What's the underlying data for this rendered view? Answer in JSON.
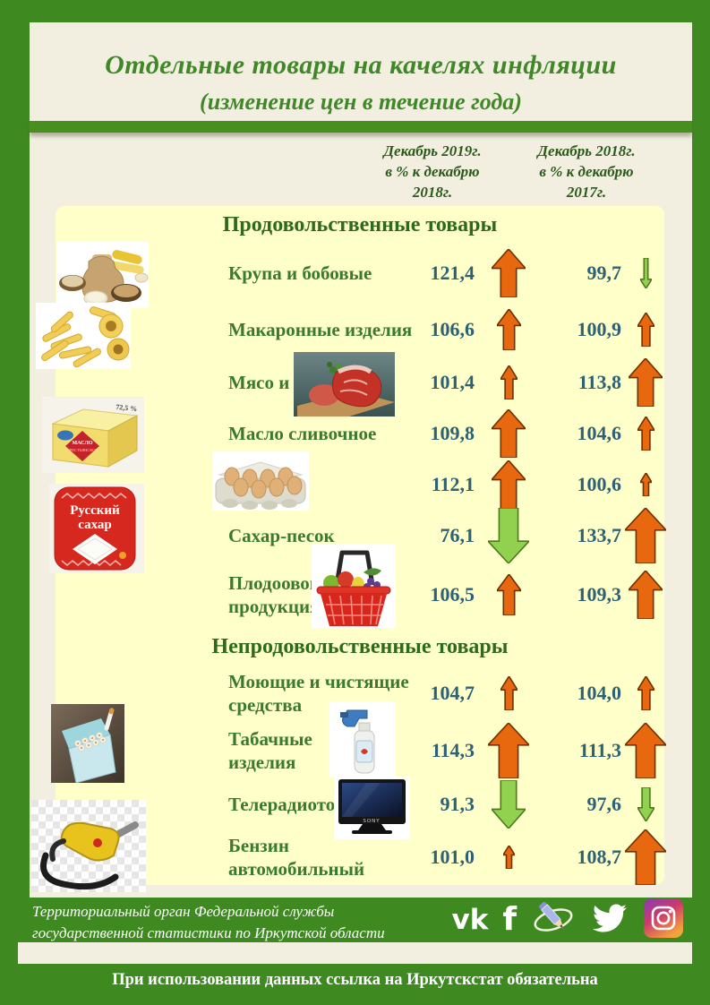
{
  "title": {
    "line1": "Отдельные  товары  на качелях инфляции",
    "line2": "(изменение цен в течение года)"
  },
  "column_headers": [
    {
      "lines": [
        "Декабрь 2019г.",
        "в % к декабрю",
        "2018г."
      ]
    },
    {
      "lines": [
        "Декабрь 2018г.",
        "в % к декабрю",
        "2017г."
      ]
    }
  ],
  "items": [
    {
      "type": "section",
      "label": "Продовольственные товары"
    },
    {
      "type": "row",
      "lines": [
        "Крупа и бобовые"
      ],
      "v1": "121,4",
      "a1": {
        "dir": "up",
        "color": "orange",
        "size": "l"
      },
      "v2": "99,7",
      "a2": {
        "dir": "down",
        "color": "green",
        "size": "thin"
      }
    },
    {
      "type": "row",
      "lines": [
        "Макаронные изделия"
      ],
      "v1": "106,6",
      "a1": {
        "dir": "up",
        "color": "orange",
        "size": "m"
      },
      "v2": "100,9",
      "a2": {
        "dir": "up",
        "color": "orange",
        "size": "s"
      }
    },
    {
      "type": "row",
      "lines": [
        "Мясо и птица"
      ],
      "v1": "101,4",
      "a1": {
        "dir": "up",
        "color": "orange",
        "size": "s"
      },
      "v2": "113,8",
      "a2": {
        "dir": "up",
        "color": "orange",
        "size": "l"
      }
    },
    {
      "type": "row",
      "lines": [
        "Масло сливочное"
      ],
      "v1": "109,8",
      "a1": {
        "dir": "up",
        "color": "orange",
        "size": "l"
      },
      "v2": "104,6",
      "a2": {
        "dir": "up",
        "color": "orange",
        "size": "s"
      }
    },
    {
      "type": "row",
      "lines": [
        "Яйца"
      ],
      "v1": "112,1",
      "a1": {
        "dir": "up",
        "color": "orange",
        "size": "l"
      },
      "v2": "100,6",
      "a2": {
        "dir": "up",
        "color": "orange",
        "size": "xs"
      }
    },
    {
      "type": "row",
      "lines": [
        "Сахар-песок"
      ],
      "v1": "76,1",
      "a1": {
        "dir": "down",
        "color": "green",
        "size": "xl"
      },
      "v2": "133,7",
      "a2": {
        "dir": "up",
        "color": "orange",
        "size": "xl"
      }
    },
    {
      "type": "row",
      "lines": [
        "Плодоовощная",
        "продукция"
      ],
      "v1": "106,5",
      "a1": {
        "dir": "up",
        "color": "orange",
        "size": "m"
      },
      "v2": "109,3",
      "a2": {
        "dir": "up",
        "color": "orange",
        "size": "l"
      }
    },
    {
      "type": "section",
      "label": "Непродовольственные товары"
    },
    {
      "type": "row",
      "lines": [
        "Моющие и чистящие",
        "средства"
      ],
      "v1": "104,7",
      "a1": {
        "dir": "up",
        "color": "orange",
        "size": "s"
      },
      "v2": "104,0",
      "a2": {
        "dir": "up",
        "color": "orange",
        "size": "s"
      }
    },
    {
      "type": "row",
      "lines": [
        "Табачные",
        "изделия"
      ],
      "v1": "114,3",
      "a1": {
        "dir": "up",
        "color": "orange",
        "size": "xl"
      },
      "v2": "111,3",
      "a2": {
        "dir": "up",
        "color": "orange",
        "size": "xl"
      }
    },
    {
      "type": "row",
      "lines": [
        "Телерадиотовары"
      ],
      "v1": "91,3",
      "a1": {
        "dir": "down",
        "color": "green",
        "size": "l"
      },
      "v2": "97,6",
      "a2": {
        "dir": "down",
        "color": "green",
        "size": "s"
      }
    },
    {
      "type": "row",
      "lines": [
        "Бензин",
        "автомобильный"
      ],
      "v1": "101,0",
      "a1": {
        "dir": "up",
        "color": "orange",
        "size": "xs"
      },
      "v2": "108,7",
      "a2": {
        "dir": "up",
        "color": "orange",
        "size": "xl"
      }
    }
  ],
  "photos": {
    "sugar_brand": "Русский",
    "sugar_word": "сахар",
    "tv_brand": "SONY",
    "butter_fat": "72,5 %",
    "butter_label": "МАСЛО",
    "butter_sub": "КРЕСТЬЯНСКОЕ"
  },
  "footer": {
    "org_lines": [
      "Территориальный орган Федеральной службы",
      "государственной статистики  по Иркутской области"
    ],
    "social": [
      "vk",
      "facebook",
      "livejournal-pencil",
      "twitter",
      "instagram"
    ],
    "vk_label": "vk",
    "facebook_label": "f",
    "notice": "При использовании данных ссылка на Иркутскстат обязательна"
  },
  "colors": {
    "frame_green": "#3e8a21",
    "divider_green": "#47901f",
    "title_green": "#3f8727",
    "header_green": "#2b5a1a",
    "section_green": "#2e6a1c",
    "label_green": "#3a7a2e",
    "value_teal": "#2d6173",
    "panel_yellow": "#ffffc9",
    "paper_cream": "#f2efe1",
    "arrow_up_orange": "#e8680f",
    "arrow_down_green": "#92d050"
  },
  "chart_data": {
    "type": "table",
    "title": "Отдельные товары на качелях инфляции (изменение цен в течение года)",
    "columns": [
      "Декабрь 2019г. в % к декабрю 2018г.",
      "Декабрь 2018г. в % к декабрю 2017г."
    ],
    "groups": [
      {
        "name": "Продовольственные товары",
        "rows": [
          [
            "Крупа и бобовые",
            121.4,
            99.7
          ],
          [
            "Макаронные изделия",
            106.6,
            100.9
          ],
          [
            "Мясо и птица",
            101.4,
            113.8
          ],
          [
            "Масло сливочное",
            109.8,
            104.6
          ],
          [
            "Яйца",
            112.1,
            100.6
          ],
          [
            "Сахар-песок",
            76.1,
            133.7
          ],
          [
            "Плодоовощная продукция",
            106.5,
            109.3
          ]
        ]
      },
      {
        "name": "Непродовольственные товары",
        "rows": [
          [
            "Моющие и чистящие средства",
            104.7,
            104.0
          ],
          [
            "Табачные изделия",
            114.3,
            111.3
          ],
          [
            "Телерадиотовары",
            91.3,
            97.6
          ],
          [
            "Бензин автомобильный",
            101.0,
            108.7
          ]
        ]
      }
    ]
  }
}
